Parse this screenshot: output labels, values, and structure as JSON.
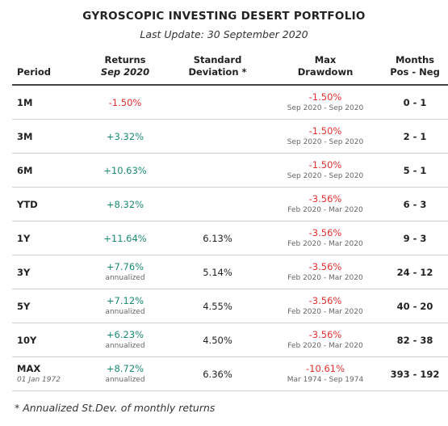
{
  "title": "GYROSCOPIC INVESTING DESERT PORTFOLIO",
  "subtitle": "Last Update: 30 September 2020",
  "headers": {
    "period": "Period",
    "returns_line1": "Returns",
    "returns_line2": "Sep 2020",
    "stdev_line1": "Standard",
    "stdev_line2": "Deviation *",
    "drawdown_line1": "Max",
    "drawdown_line2": "Drawdown",
    "months_line1": "Months",
    "months_line2": "Pos - Neg"
  },
  "rows": [
    {
      "period": "1M",
      "period_note": "",
      "ret": "-1.50%",
      "ret_note": "",
      "stdev": "",
      "dd": "-1.50%",
      "dd_range": "Sep 2020 - Sep 2020",
      "months": "0 - 1"
    },
    {
      "period": "3M",
      "period_note": "",
      "ret": "+3.32%",
      "ret_note": "",
      "stdev": "",
      "dd": "-1.50%",
      "dd_range": "Sep 2020 - Sep 2020",
      "months": "2 - 1"
    },
    {
      "period": "6M",
      "period_note": "",
      "ret": "+10.63%",
      "ret_note": "",
      "stdev": "",
      "dd": "-1.50%",
      "dd_range": "Sep 2020 - Sep 2020",
      "months": "5 - 1"
    },
    {
      "period": "YTD",
      "period_note": "",
      "ret": "+8.32%",
      "ret_note": "",
      "stdev": "",
      "dd": "-3.56%",
      "dd_range": "Feb 2020 - Mar 2020",
      "months": "6 - 3"
    },
    {
      "period": "1Y",
      "period_note": "",
      "ret": "+11.64%",
      "ret_note": "",
      "stdev": "6.13%",
      "dd": "-3.56%",
      "dd_range": "Feb 2020 - Mar 2020",
      "months": "9 - 3"
    },
    {
      "period": "3Y",
      "period_note": "",
      "ret": "+7.76%",
      "ret_note": "annualized",
      "stdev": "5.14%",
      "dd": "-3.56%",
      "dd_range": "Feb 2020 - Mar 2020",
      "months": "24 - 12"
    },
    {
      "period": "5Y",
      "period_note": "",
      "ret": "+7.12%",
      "ret_note": "annualized",
      "stdev": "4.55%",
      "dd": "-3.56%",
      "dd_range": "Feb 2020 - Mar 2020",
      "months": "40 - 20"
    },
    {
      "period": "10Y",
      "period_note": "",
      "ret": "+6.23%",
      "ret_note": "annualized",
      "stdev": "4.50%",
      "dd": "-3.56%",
      "dd_range": "Feb 2020 - Mar 2020",
      "months": "82 - 38"
    },
    {
      "period": "MAX",
      "period_note": "01 Jan 1972",
      "ret": "+8.72%",
      "ret_note": "annualized",
      "stdev": "6.36%",
      "dd": "-10.61%",
      "dd_range": "Mar 1974 - Sep 1974",
      "months": "393 - 192"
    }
  ],
  "footnote": "* Annualized St.Dev. of monthly returns",
  "colors": {
    "positive": "#1a8a72",
    "negative": "#e03030"
  }
}
